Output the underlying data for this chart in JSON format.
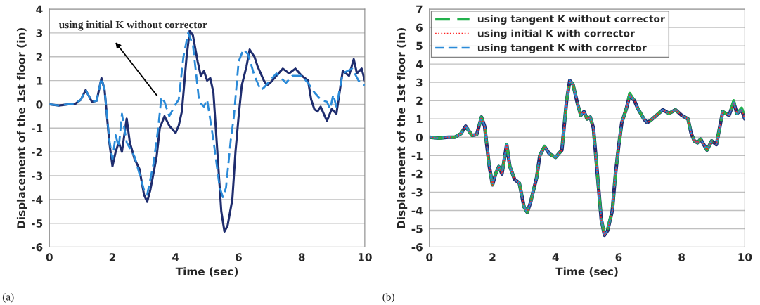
{
  "chart_data": [
    {
      "type": "line",
      "xlabel": "Time (sec)",
      "ylabel": "Displacement of the 1st floor (in)",
      "xlim": [
        0,
        10
      ],
      "ylim": [
        -6,
        4
      ],
      "xticks": [
        0,
        2,
        4,
        6,
        8,
        10
      ],
      "yticks": [
        -6,
        -5,
        -4,
        -3,
        -2,
        -1,
        0,
        1,
        2,
        3,
        4
      ],
      "grid": "y",
      "legend": false,
      "annotations": [
        {
          "text": "using initial K without corrector",
          "x": 3.45,
          "y": 0.3
        },
        "(a)"
      ],
      "series": [
        {
          "color": "#1f2d6e",
          "line_style": "solid",
          "x": [
            0,
            0.3,
            0.6,
            0.8,
            1.0,
            1.15,
            1.35,
            1.5,
            1.65,
            1.75,
            1.9,
            2.0,
            2.1,
            2.2,
            2.3,
            2.45,
            2.55,
            2.7,
            2.85,
            3.0,
            3.1,
            3.2,
            3.4,
            3.5,
            3.65,
            3.8,
            4.0,
            4.1,
            4.2,
            4.35,
            4.45,
            4.55,
            4.7,
            4.8,
            4.9,
            5.0,
            5.1,
            5.2,
            5.3,
            5.45,
            5.55,
            5.65,
            5.8,
            5.9,
            6.0,
            6.1,
            6.25,
            6.35,
            6.5,
            6.6,
            6.8,
            6.9,
            7.0,
            7.2,
            7.4,
            7.6,
            7.8,
            8.0,
            8.2,
            8.3,
            8.4,
            8.5,
            8.6,
            8.8,
            8.95,
            9.1,
            9.3,
            9.5,
            9.65,
            9.75,
            9.9,
            10
          ],
          "values": [
            0,
            -0.05,
            0,
            0,
            0.2,
            0.6,
            0.1,
            0.15,
            1.1,
            0.6,
            -1.6,
            -2.6,
            -2.0,
            -1.6,
            -2.0,
            -0.6,
            -1.6,
            -2.3,
            -2.7,
            -3.8,
            -4.1,
            -3.6,
            -2.2,
            -1.0,
            -0.5,
            -0.9,
            -1.2,
            -0.9,
            -0.3,
            2,
            3.1,
            2.9,
            1.8,
            1.2,
            1.4,
            1.0,
            1.1,
            0.5,
            -1.5,
            -4.5,
            -5.35,
            -5.1,
            -4.0,
            -2.0,
            -0.5,
            0.8,
            1.6,
            2.3,
            2.0,
            1.6,
            1.0,
            0.8,
            0.9,
            1.2,
            1.5,
            1.3,
            1.5,
            1.2,
            1.0,
            0.2,
            -0.2,
            -0.3,
            -0.1,
            -0.7,
            -0.2,
            -0.4,
            1.4,
            1.2,
            1.9,
            1.3,
            1.5,
            1.0
          ]
        },
        {
          "color": "#2a8ad8",
          "line_style": "dashed",
          "x": [
            0,
            0.3,
            0.6,
            0.8,
            1.0,
            1.15,
            1.35,
            1.5,
            1.65,
            1.75,
            1.9,
            2.0,
            2.1,
            2.2,
            2.3,
            2.45,
            2.7,
            3.0,
            3.1,
            3.3,
            3.45,
            3.55,
            3.65,
            3.8,
            4.0,
            4.1,
            4.25,
            4.4,
            4.55,
            4.75,
            4.9,
            5.0,
            5.2,
            5.4,
            5.5,
            5.6,
            5.75,
            5.85,
            6.0,
            6.15,
            6.3,
            6.5,
            6.7,
            6.8,
            7.0,
            7.2,
            7.5,
            7.7,
            8.0,
            8.2,
            8.4,
            8.6,
            8.8,
            8.9,
            9.0,
            9.1,
            9.3,
            9.6,
            9.8,
            10
          ],
          "values": [
            0,
            -0.05,
            0,
            0,
            0.2,
            0.6,
            0.1,
            0.15,
            1.1,
            0.6,
            -1.5,
            -2.3,
            -1.3,
            -1.8,
            -0.4,
            -1.6,
            -2.2,
            -3.6,
            -3.8,
            -2.5,
            -1.0,
            0.3,
            0.1,
            -0.5,
            0,
            0.2,
            2.0,
            3.0,
            2.5,
            0.1,
            -0.1,
            0.2,
            -1.5,
            -3.5,
            -3.9,
            -3.5,
            -1.5,
            -0.5,
            1.8,
            2.3,
            2.1,
            1.2,
            0.6,
            0.7,
            1.0,
            1.3,
            0.9,
            1.2,
            1.2,
            0.9,
            0.5,
            0.2,
            0.1,
            -0.2,
            0.4,
            -0.1,
            1.3,
            1.5,
            1.0,
            0.8
          ]
        }
      ]
    },
    {
      "type": "line",
      "xlabel": "Time (sec)",
      "ylabel": "Displacement of the 1st floor (in)",
      "xlim": [
        0,
        10
      ],
      "ylim": [
        -6,
        7
      ],
      "xticks": [
        0,
        2,
        4,
        6,
        8,
        10
      ],
      "yticks": [
        -6,
        -5,
        -4,
        -3,
        -2,
        -1,
        0,
        1,
        2,
        3,
        4,
        5,
        6,
        7
      ],
      "grid": "y",
      "legend": "top left",
      "annotations": [
        "(b)"
      ],
      "series": [
        {
          "color": "#1f2d6e",
          "line_style": "solid",
          "x": [
            0,
            0.3,
            0.6,
            0.8,
            1.0,
            1.15,
            1.35,
            1.5,
            1.65,
            1.75,
            1.9,
            2.0,
            2.1,
            2.2,
            2.3,
            2.45,
            2.55,
            2.7,
            2.85,
            3.0,
            3.1,
            3.2,
            3.4,
            3.5,
            3.65,
            3.8,
            4.0,
            4.1,
            4.2,
            4.35,
            4.45,
            4.55,
            4.7,
            4.8,
            4.9,
            5.0,
            5.1,
            5.2,
            5.3,
            5.45,
            5.55,
            5.65,
            5.8,
            5.9,
            6.0,
            6.1,
            6.25,
            6.35,
            6.5,
            6.6,
            6.8,
            6.9,
            7.0,
            7.2,
            7.4,
            7.6,
            7.8,
            8.0,
            8.2,
            8.3,
            8.4,
            8.5,
            8.6,
            8.8,
            8.95,
            9.1,
            9.3,
            9.5,
            9.65,
            9.75,
            9.9,
            10
          ],
          "values": [
            0,
            -0.05,
            0,
            0,
            0.2,
            0.6,
            0.1,
            0.15,
            1.1,
            0.6,
            -1.6,
            -2.6,
            -2.0,
            -1.6,
            -2.0,
            -0.4,
            -1.6,
            -2.3,
            -2.5,
            -3.8,
            -4.1,
            -3.6,
            -2.2,
            -1.0,
            -0.5,
            -0.9,
            -1.1,
            -0.9,
            -0.7,
            2,
            3.1,
            2.9,
            1.8,
            1.2,
            1.4,
            1.0,
            1.1,
            0.5,
            -1.5,
            -4.5,
            -5.35,
            -5.1,
            -4.0,
            -2.0,
            -0.5,
            0.8,
            1.6,
            2.3,
            2.0,
            1.6,
            1.0,
            0.8,
            0.9,
            1.2,
            1.5,
            1.3,
            1.5,
            1.2,
            1.0,
            0.2,
            -0.2,
            -0.3,
            -0.1,
            -0.7,
            -0.2,
            -0.4,
            1.4,
            1.2,
            1.9,
            1.3,
            1.5,
            1.0
          ]
        },
        {
          "name": "using tangent K without corrector",
          "color": "#22b14c",
          "line_style": "dashed",
          "x": [
            0,
            0.3,
            0.6,
            0.8,
            1.0,
            1.15,
            1.35,
            1.5,
            1.65,
            1.75,
            1.9,
            2.0,
            2.1,
            2.2,
            2.3,
            2.45,
            2.55,
            2.7,
            2.85,
            3.0,
            3.1,
            3.2,
            3.4,
            3.5,
            3.65,
            3.8,
            4.0,
            4.1,
            4.2,
            4.35,
            4.45,
            4.55,
            4.7,
            4.8,
            4.9,
            5.0,
            5.1,
            5.2,
            5.3,
            5.45,
            5.55,
            5.65,
            5.8,
            5.9,
            6.0,
            6.1,
            6.25,
            6.35,
            6.5,
            6.6,
            6.8,
            6.9,
            7.0,
            7.2,
            7.4,
            7.6,
            7.8,
            8.0,
            8.2,
            8.3,
            8.4,
            8.5,
            8.6,
            8.8,
            8.95,
            9.1,
            9.3,
            9.5,
            9.65,
            9.75,
            9.9,
            10
          ],
          "values": [
            0,
            -0.05,
            0,
            0,
            0.2,
            0.6,
            0.1,
            0.15,
            1.1,
            0.6,
            -1.6,
            -2.6,
            -2.0,
            -1.6,
            -2.0,
            -0.4,
            -1.6,
            -2.3,
            -2.5,
            -3.8,
            -4.1,
            -3.6,
            -2.2,
            -1.0,
            -0.5,
            -0.9,
            -1.1,
            -0.9,
            -0.7,
            2,
            3.1,
            2.9,
            1.8,
            1.2,
            1.4,
            1.0,
            1.1,
            0.5,
            -1.5,
            -4.5,
            -5.3,
            -5.0,
            -4.0,
            -2.0,
            -0.5,
            0.8,
            1.6,
            2.4,
            2.0,
            1.6,
            1.0,
            0.8,
            0.9,
            1.2,
            1.5,
            1.3,
            1.5,
            1.2,
            1.0,
            0.2,
            -0.2,
            -0.3,
            -0.1,
            -0.7,
            -0.2,
            -0.4,
            1.4,
            1.2,
            2.0,
            1.3,
            1.6,
            1.1
          ]
        },
        {
          "name": "using initial K with corrector",
          "color": "#ff2020",
          "line_style": "dotted",
          "x": [
            0,
            0.3,
            0.6,
            0.8,
            1.0,
            1.15,
            1.35,
            1.5,
            1.65,
            1.75,
            1.9,
            2.0,
            2.1,
            2.2,
            2.3,
            2.45,
            2.55,
            2.7,
            2.85,
            3.0,
            3.1,
            3.2,
            3.4,
            3.5,
            3.65,
            3.8,
            4.0,
            4.1,
            4.2,
            4.35,
            4.45,
            4.55,
            4.7,
            4.8,
            4.9,
            5.0,
            5.1,
            5.2,
            5.3,
            5.45,
            5.55,
            5.65,
            5.8,
            5.9,
            6.0,
            6.1,
            6.25,
            6.35,
            6.5,
            6.6,
            6.8,
            6.9,
            7.0,
            7.2,
            7.4,
            7.6,
            7.8,
            8.0,
            8.2,
            8.3,
            8.4,
            8.5,
            8.6,
            8.8,
            8.95,
            9.1,
            9.3,
            9.5,
            9.65,
            9.75,
            9.9,
            10
          ],
          "values": [
            0,
            -0.05,
            0,
            0,
            0.2,
            0.6,
            0.1,
            0.15,
            1.1,
            0.6,
            -1.6,
            -2.6,
            -2.0,
            -1.6,
            -2.0,
            -0.4,
            -1.6,
            -2.3,
            -2.5,
            -3.8,
            -4.1,
            -3.6,
            -2.2,
            -1.0,
            -0.5,
            -0.9,
            -1.1,
            -0.9,
            -0.7,
            2,
            3.1,
            2.9,
            1.8,
            1.2,
            1.4,
            1.0,
            1.1,
            0.5,
            -1.5,
            -4.5,
            -5.35,
            -5.1,
            -4.0,
            -2.0,
            -0.5,
            0.8,
            1.6,
            2.3,
            2.0,
            1.6,
            1.0,
            0.8,
            0.9,
            1.2,
            1.5,
            1.3,
            1.5,
            1.2,
            1.0,
            0.2,
            -0.2,
            -0.3,
            -0.1,
            -0.7,
            -0.2,
            -0.4,
            1.4,
            1.2,
            1.9,
            1.3,
            1.5,
            1.0
          ]
        },
        {
          "name": "using tangent K with corrector",
          "color": "#2a8ad8",
          "line_style": "dashed",
          "x": [
            0,
            0.3,
            0.6,
            0.8,
            1.0,
            1.15,
            1.35,
            1.5,
            1.65,
            1.75,
            1.9,
            2.0,
            2.1,
            2.2,
            2.3,
            2.45,
            2.55,
            2.7,
            2.85,
            3.0,
            3.1,
            3.2,
            3.4,
            3.5,
            3.65,
            3.8,
            4.0,
            4.1,
            4.2,
            4.35,
            4.45,
            4.55,
            4.7,
            4.8,
            4.9,
            5.0,
            5.1,
            5.2,
            5.3,
            5.45,
            5.55,
            5.65,
            5.8,
            5.9,
            6.0,
            6.1,
            6.25,
            6.35,
            6.5,
            6.6,
            6.8,
            6.9,
            7.0,
            7.2,
            7.4,
            7.6,
            7.8,
            8.0,
            8.2,
            8.3,
            8.4,
            8.5,
            8.6,
            8.8,
            8.95,
            9.1,
            9.3,
            9.5,
            9.65,
            9.75,
            9.9,
            10
          ],
          "values": [
            0,
            -0.05,
            0,
            0,
            0.2,
            0.6,
            0.1,
            0.15,
            1.1,
            0.6,
            -1.6,
            -2.6,
            -2.0,
            -1.6,
            -2.0,
            -0.4,
            -1.6,
            -2.3,
            -2.5,
            -3.8,
            -4.1,
            -3.6,
            -2.2,
            -1.0,
            -0.5,
            -0.9,
            -1.1,
            -0.9,
            -0.7,
            2,
            3.1,
            2.9,
            1.8,
            1.2,
            1.4,
            1.0,
            1.1,
            0.5,
            -1.5,
            -4.5,
            -5.35,
            -5.1,
            -4.0,
            -2.0,
            -0.5,
            0.8,
            1.6,
            2.3,
            2.0,
            1.6,
            1.0,
            0.8,
            0.9,
            1.2,
            1.5,
            1.3,
            1.5,
            1.2,
            1.0,
            0.2,
            -0.2,
            -0.3,
            -0.1,
            -0.7,
            -0.2,
            -0.4,
            1.4,
            1.2,
            1.9,
            1.3,
            1.5,
            1.0
          ]
        }
      ]
    }
  ]
}
